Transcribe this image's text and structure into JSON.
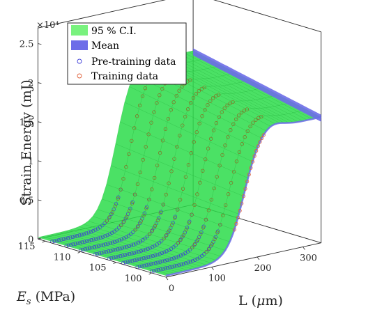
{
  "chart_data": {
    "type": "surface",
    "zlabel": "Strain Energy (mJ)",
    "xlabel": "L (μm)",
    "ylabel": "Es (MPa)",
    "z_exponent_label": "×10⁴",
    "x_ticks": [
      "0",
      "100",
      "200",
      "300"
    ],
    "y_ticks": [
      "100",
      "105",
      "110",
      "115"
    ],
    "z_ticks": [
      "0",
      "0.5",
      "1",
      "1.5",
      "2",
      "2.5"
    ],
    "xlim": [
      0,
      340
    ],
    "ylim": [
      98,
      116
    ],
    "zlim": [
      0,
      27000
    ],
    "legend": {
      "position": "top-left",
      "entries": [
        "95 % C.I.",
        "Mean",
        "Pre-training data",
        "Training data"
      ]
    },
    "colors": {
      "ci": "#2cdc4a",
      "ci_legend": "#79f27e",
      "mean": "#6d6de8",
      "pretraining": "#3c3cd8",
      "training": "#e0603a",
      "axes": "#262626"
    },
    "model": {
      "low_energy": 200,
      "high_energy_at_Es100": 16500,
      "high_energy_at_Es115": 19500,
      "transition_L": 170,
      "transition_width": 18
    },
    "pretraining_Es": [
      100,
      102,
      104,
      106,
      108,
      110,
      112,
      114
    ],
    "pretraining_L_max": 150,
    "training_L_range": [
      120,
      245
    ]
  }
}
